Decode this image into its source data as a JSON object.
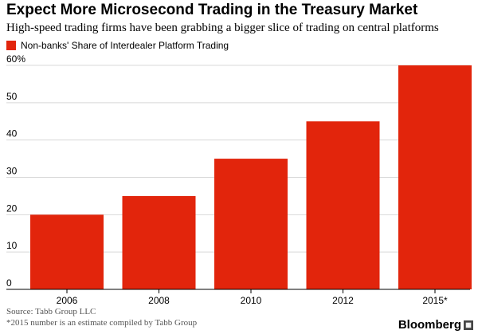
{
  "title": "Expect More Microsecond Trading in the Treasury Market",
  "subtitle": "High-speed trading firms have been grabbing a bigger slice of trading on central platforms",
  "legend_label": "Non-banks' Share of Interdealer Platform Trading",
  "footer": {
    "source": "Source: Tabb Group LLC",
    "note": "*2015 number is an estimate compiled by Tabb Group"
  },
  "brand": "Bloomberg",
  "brand_icon": "grid-icon",
  "colors": {
    "bar": "#e2250c",
    "grid": "#d8d8d8",
    "axis": "#000000"
  },
  "chart_data": {
    "type": "bar",
    "categories": [
      "2006",
      "2008",
      "2010",
      "2012",
      "2015*"
    ],
    "values": [
      20,
      25,
      35,
      45,
      60
    ],
    "ylim": [
      0,
      60
    ],
    "yticks": [
      0,
      10,
      20,
      30,
      40,
      50,
      60
    ],
    "ytick_labels": [
      "0",
      "10",
      "20",
      "30",
      "40",
      "50",
      "60%"
    ],
    "grid": true,
    "legend": "top-left",
    "xlabel": "",
    "ylabel": ""
  }
}
